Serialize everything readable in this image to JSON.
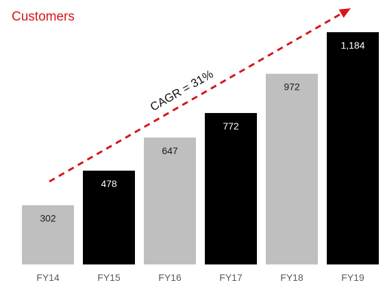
{
  "chart_data": {
    "type": "bar",
    "title": "Customers",
    "categories": [
      "FY14",
      "FY15",
      "FY16",
      "FY17",
      "FY18",
      "FY19"
    ],
    "values": [
      302,
      478,
      647,
      772,
      972,
      1184
    ],
    "value_labels": [
      "302",
      "478",
      "647",
      "772",
      "972",
      "1,184"
    ],
    "bar_colors": [
      "#bfbfbf",
      "#000000",
      "#bfbfbf",
      "#000000",
      "#bfbfbf",
      "#000000"
    ],
    "label_colors": [
      "#1a1a1a",
      "#ffffff",
      "#1a1a1a",
      "#ffffff",
      "#1a1a1a",
      "#ffffff"
    ],
    "ylim": [
      0,
      1184
    ],
    "grid": false,
    "annotation": {
      "text": "CAGR = 31%",
      "arrow_color": "#d7141a",
      "style": "dashed-arrow"
    },
    "title_color": "#d7141a"
  }
}
